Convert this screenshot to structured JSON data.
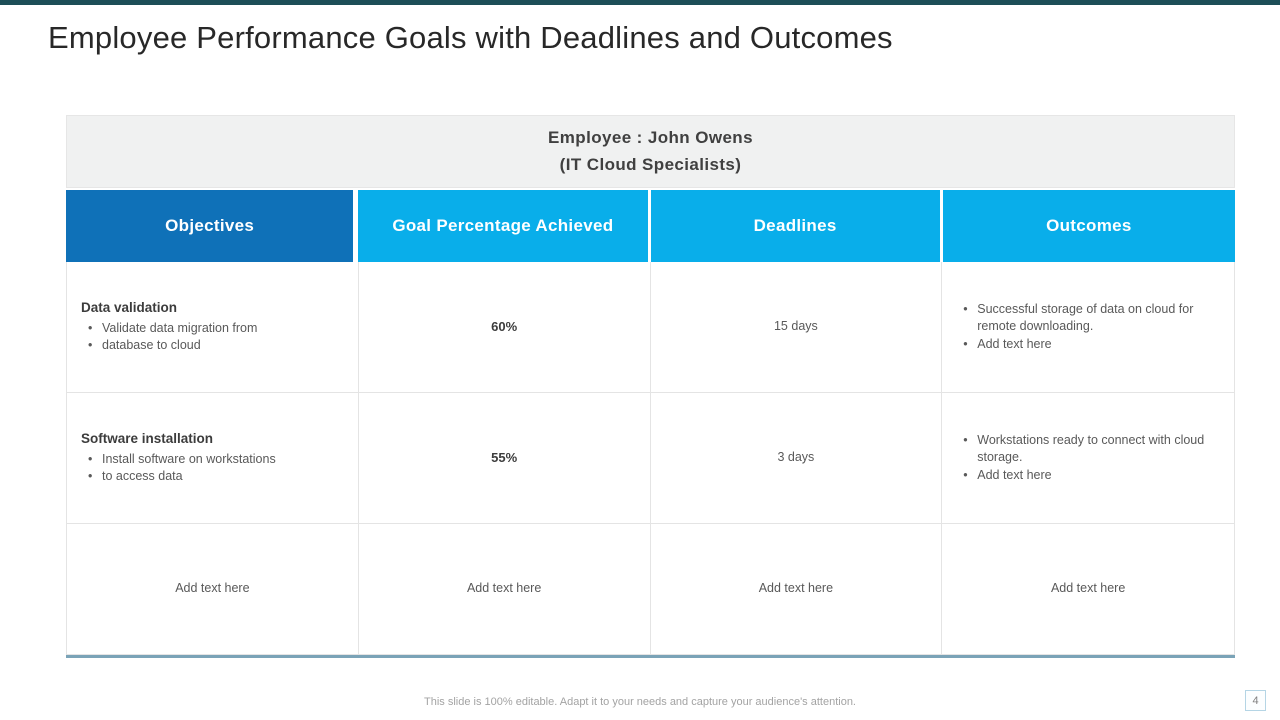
{
  "slide": {
    "title": "Employee Performance Goals with Deadlines and Outcomes",
    "footer": "This slide is 100% editable. Adapt it to your needs and capture your audience's attention.",
    "page_number": "4"
  },
  "colors": {
    "top_bar": "#1d4e57",
    "objectives_header_bg": "#0f71b8",
    "column_header_bg": "#09aeea",
    "employee_band_bg": "#f0f1f1",
    "table_bottom_line": "#7aa3b7",
    "page_number_border": "#b5d5e5"
  },
  "table": {
    "employee_line1": "Employee : John Owens",
    "employee_line2": "(IT Cloud Specialists)",
    "columns": [
      "Objectives",
      "Goal Percentage Achieved",
      "Deadlines",
      "Outcomes"
    ],
    "rows": [
      {
        "objective_title": "Data validation",
        "objective_bullets": [
          "Validate data migration from",
          "database to cloud"
        ],
        "goal": "60%",
        "deadline": "15 days",
        "outcome_bullets": [
          "Successful storage of data on cloud for remote downloading.",
          "Add text here"
        ]
      },
      {
        "objective_title": "Software installation",
        "objective_bullets": [
          "Install software on workstations",
          "to access data"
        ],
        "goal": "55%",
        "deadline": "3 days",
        "outcome_bullets": [
          "Workstations ready to connect with cloud storage.",
          "Add text here"
        ]
      },
      {
        "cells": [
          "Add text here",
          "Add text here",
          "Add text here",
          "Add text here"
        ]
      }
    ]
  }
}
